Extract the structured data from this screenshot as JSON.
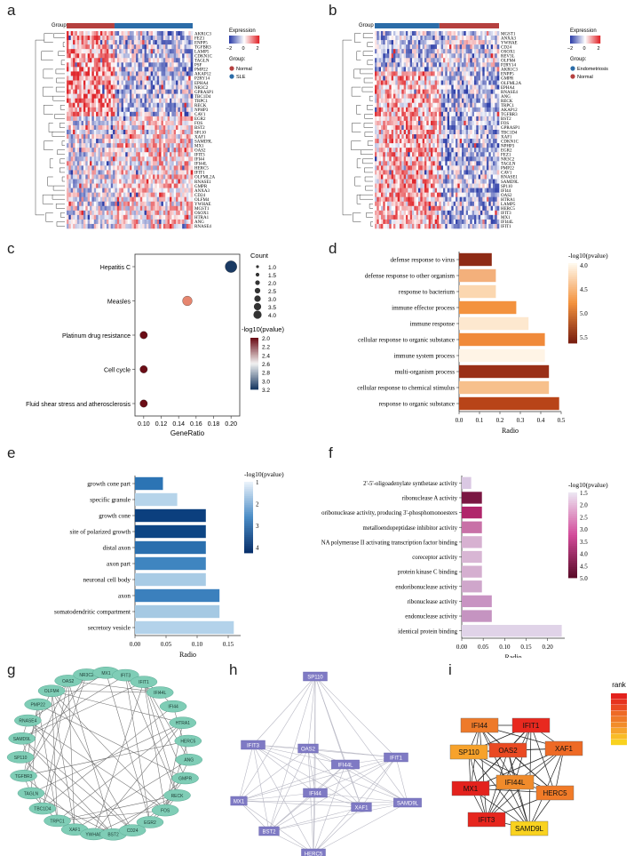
{
  "panel_letters": {
    "a": "a",
    "b": "b",
    "c": "c",
    "d": "d",
    "e": "e",
    "f": "f",
    "g": "g",
    "h": "h",
    "i": "i"
  },
  "heatmap_a": {
    "group_title": "Group",
    "legend_title": "Expression",
    "legend_ticks": [
      "−2",
      "0",
      "2"
    ],
    "group_legend_title": "Group:",
    "groups": [
      {
        "name": "Normal",
        "color": "#b5403f"
      },
      {
        "name": "SLE",
        "color": "#2b6ca8"
      }
    ],
    "genes": [
      "AKR1C3",
      "FEZ1",
      "ENPP5",
      "TGFBR3",
      "LAMP5",
      "CDKN1C",
      "TAGLN",
      "PSF",
      "PMP22",
      "AKAP12",
      "P2RY14",
      "EPHA4",
      "NR3C2",
      "GPRASP1",
      "TBC1D4",
      "TRPC1",
      "RECK",
      "NPHP3",
      "CAV1",
      "EGR2",
      "FOS",
      "BST2",
      "SP110",
      "XAF1",
      "SAMD9L",
      "MX1",
      "OAS2",
      "IFIT3",
      "IFI44",
      "IFI44L",
      "HERC5",
      "IFIT1",
      "OLFML2A",
      "RNASE1",
      "GMPR",
      "ANXA3",
      "CD24",
      "OLFM4",
      "YWHAE",
      "MGST1",
      "OSOX1",
      "HTRA1",
      "ANG",
      "RNASE4"
    ]
  },
  "heatmap_b": {
    "group_title": "Group",
    "legend_title": "Expression",
    "legend_ticks": [
      "−2",
      "0",
      "2"
    ],
    "group_legend_title": "Group:",
    "groups": [
      {
        "name": "Endometriosis",
        "color": "#2b6ca8"
      },
      {
        "name": "Normal",
        "color": "#b5403f"
      }
    ],
    "genes": [
      "MGST1",
      "ANXA3",
      "YWHAE",
      "CD24",
      "OSOX1",
      "REV3L",
      "OLFM4",
      "P2RY14",
      "AKR1C3",
      "ENPP5",
      "GMPR",
      "OLFML2A",
      "EPHA4",
      "RNASE4",
      "ANG",
      "RECK",
      "TRPC1",
      "AKAP12",
      "TGFBR3",
      "BST2",
      "FOS",
      "GPRASP1",
      "TBC1D4",
      "XAF1",
      "CDKN1C",
      "NPHP3",
      "EGR2",
      "FEZ1",
      "NR3C2",
      "TAGLN",
      "PMP22",
      "CAV1",
      "RNASE1",
      "SAMD9L",
      "SP110",
      "IFI44",
      "OAS2",
      "HTRA1",
      "LAMP5",
      "HERC5",
      "IFIT3",
      "MX1",
      "IFI44L",
      "IFIT1"
    ]
  },
  "chart_data": [
    {
      "panel": "c",
      "type": "scatter",
      "title": "",
      "xlabel": "GeneRatio",
      "ylabel": "",
      "xlim": [
        0.09,
        0.21
      ],
      "xticks": [
        "0.10",
        "0.12",
        "0.14",
        "0.16",
        "0.18",
        "0.20"
      ],
      "points": [
        {
          "term": "Hepatitis C",
          "x": 0.2,
          "count": 4,
          "neglog10p": 3.2,
          "color": "#1a3a63"
        },
        {
          "term": "Measles",
          "x": 0.15,
          "count": 3,
          "neglog10p": 2.4,
          "color": "#e6866f"
        },
        {
          "term": "Platinum drug resistance",
          "x": 0.1,
          "count": 2,
          "neglog10p": 2.0,
          "color": "#6b0d16"
        },
        {
          "term": "Cell cycle",
          "x": 0.1,
          "count": 2,
          "neglog10p": 2.0,
          "color": "#6b0d16"
        },
        {
          "term": "Fluid shear stress and atherosclerosis",
          "x": 0.1,
          "count": 2,
          "neglog10p": 2.0,
          "color": "#6b0d16"
        }
      ],
      "size_legend_title": "Count",
      "size_legend": [
        "1.0",
        "1.5",
        "2.0",
        "2.5",
        "3.0",
        "3.5",
        "4.0"
      ],
      "color_legend_title": "-log10(pvalue)",
      "color_legend_ticks": [
        "2.0",
        "2.2",
        "2.4",
        "2.6",
        "2.8",
        "3.0",
        "3.2"
      ]
    },
    {
      "panel": "d",
      "type": "bar",
      "orientation": "horizontal",
      "xlabel": "Radio",
      "xlim": [
        0,
        0.5
      ],
      "xticks": [
        "0.0",
        "0.1",
        "0.2",
        "0.3",
        "0.4",
        "0.5"
      ],
      "categories": [
        "defense response to virus",
        "defense response to other organism",
        "response to bacterium",
        "immune effector process",
        "immune response",
        "cellular response to organic substance",
        "immune system process",
        "multi-organism process",
        "cellular response to chemical stimulus",
        "response to organic substance"
      ],
      "values": [
        0.16,
        0.18,
        0.18,
        0.28,
        0.34,
        0.42,
        0.42,
        0.44,
        0.44,
        0.49
      ],
      "colors": [
        "#8e2a15",
        "#f3b07b",
        "#fbd7b0",
        "#f3923e",
        "#fde8cf",
        "#f08a3a",
        "#fff4e6",
        "#9a2f17",
        "#f7c08c",
        "#b84418"
      ],
      "legend_title": "-log10(pvalue)",
      "legend_ticks": [
        "4.0",
        "4.5",
        "5.0",
        "5.5"
      ]
    },
    {
      "panel": "e",
      "type": "bar",
      "orientation": "horizontal",
      "xlabel": "Radio",
      "xlim": [
        0,
        0.17
      ],
      "xticks": [
        "0.00",
        "0.05",
        "0.10",
        "0.15"
      ],
      "categories": [
        "growth cone part",
        "specific granule",
        "growth cone",
        "site of polarized growth",
        "distal axon",
        "axon part",
        "neuronal cell body",
        "axon",
        "somatodendritic compartment",
        "secretory vesicle"
      ],
      "values": [
        0.045,
        0.068,
        0.114,
        0.114,
        0.114,
        0.114,
        0.114,
        0.136,
        0.136,
        0.159
      ],
      "colors": [
        "#2c74b4",
        "#b6d4ea",
        "#0b3f7e",
        "#0d4584",
        "#2a6fae",
        "#3f85c0",
        "#a8cbe5",
        "#3b80bd",
        "#a5c9e3",
        "#b3d2ea"
      ],
      "legend_title": "-log10(pvalue)",
      "legend_ticks": [
        "1",
        "2",
        "3",
        "4"
      ]
    },
    {
      "panel": "f",
      "type": "bar",
      "orientation": "horizontal",
      "xlabel": "Radio",
      "xlim": [
        0,
        0.24
      ],
      "xticks": [
        "0.00",
        "0.05",
        "0.10",
        "0.15",
        "0.20"
      ],
      "categories": [
        "2'-5'-oligoadenylate synthetase activity",
        "ribonuclease A activity",
        "endoribonuclease activity, producing 3'-phosphomonoesters",
        "metalloendopeptidase inhibitor activity",
        "RNA polymerase II activating transcription factor binding",
        "coreceptor activity",
        "protein kinase C binding",
        "endoribonuclease activity",
        "ribonuclease activity",
        "endonuclease activity",
        "identical protein binding"
      ],
      "values": [
        0.022,
        0.047,
        0.047,
        0.047,
        0.047,
        0.047,
        0.047,
        0.047,
        0.07,
        0.07,
        0.233
      ],
      "colors": [
        "#dac8e3",
        "#7a1742",
        "#b0266b",
        "#c871a7",
        "#d7b1d1",
        "#d8b6d4",
        "#d5afd0",
        "#cfa6cb",
        "#c893c2",
        "#c594c1",
        "#e0d3e8"
      ],
      "legend_title": "-log10(pvalue)",
      "legend_ticks": [
        "1.5",
        "2.0",
        "2.5",
        "3.0",
        "3.5",
        "4.0",
        "4.5",
        "5.0"
      ]
    }
  ],
  "network_g": {
    "nodes": [
      "OAS2",
      "NR3C2",
      "MX1",
      "IFIT3",
      "OLFM4",
      "IFIT1",
      "PMP22",
      "IFI44L",
      "RNASE4",
      "IFI44",
      "SAMD9L",
      "HTRA1",
      "SP110",
      "HERC5",
      "TGFBR3",
      "ANG",
      "TAGLN",
      "GMPR",
      "TBC1D4",
      "RECK",
      "TRPC1",
      "FOS",
      "XAF1",
      "EGR2",
      "YWHAE",
      "BST2",
      "CD24"
    ]
  },
  "network_h": {
    "nodes": [
      "SP110",
      "IFIT3",
      "OAS2",
      "IFI44L",
      "IFIT1",
      "MX1",
      "IFI44",
      "XAF1",
      "SAMD9L",
      "BST2",
      "HERC5"
    ]
  },
  "network_i": {
    "nodes": [
      {
        "name": "IFI44",
        "color": "#ee7a2a"
      },
      {
        "name": "IFIT1",
        "color": "#e8291f"
      },
      {
        "name": "SP110",
        "color": "#f7a22b"
      },
      {
        "name": "OAS2",
        "color": "#ea4a23"
      },
      {
        "name": "XAF1",
        "color": "#ee6a25"
      },
      {
        "name": "MX1",
        "color": "#e3221d"
      },
      {
        "name": "IFI44L",
        "color": "#f08b2b"
      },
      {
        "name": "HERC5",
        "color": "#f17b28"
      },
      {
        "name": "IFIT3",
        "color": "#e6261e"
      },
      {
        "name": "SAMD9L",
        "color": "#f9d21f"
      }
    ],
    "rank_title": "rank",
    "rank_colors": [
      "#e3221d",
      "#e6331f",
      "#ea4a23",
      "#ee6a25",
      "#ef7a28",
      "#f28d2b",
      "#f6a42c",
      "#f9bc27",
      "#f9d21f"
    ]
  }
}
